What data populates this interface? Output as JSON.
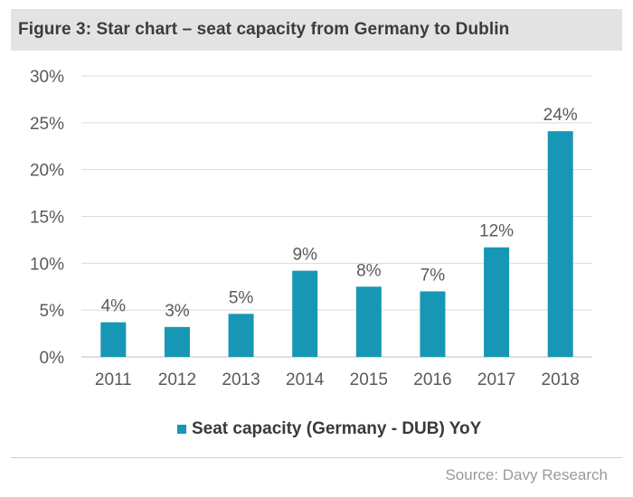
{
  "chart_data": {
    "type": "bar",
    "title": "Figure 3: Star chart – seat capacity from Germany to Dublin",
    "categories": [
      "2011",
      "2012",
      "2013",
      "2014",
      "2015",
      "2016",
      "2017",
      "2018"
    ],
    "series": [
      {
        "name": "Seat capacity (Germany - DUB) YoY",
        "values": [
          3.7,
          3.2,
          4.6,
          9.2,
          7.5,
          7.0,
          11.7,
          24.1
        ],
        "data_labels": [
          "4%",
          "3%",
          "5%",
          "9%",
          "8%",
          "7%",
          "12%",
          "24%"
        ],
        "color": "#1797b5"
      }
    ],
    "ylim": [
      0,
      30
    ],
    "yticks": [
      0,
      5,
      10,
      15,
      20,
      25,
      30
    ],
    "ytick_labels": [
      "0%",
      "5%",
      "10%",
      "15%",
      "20%",
      "25%",
      "30%"
    ],
    "xlabel": "",
    "ylabel": "",
    "grid": true,
    "legend_position": "bottom"
  },
  "source": "Source: Davy Research"
}
